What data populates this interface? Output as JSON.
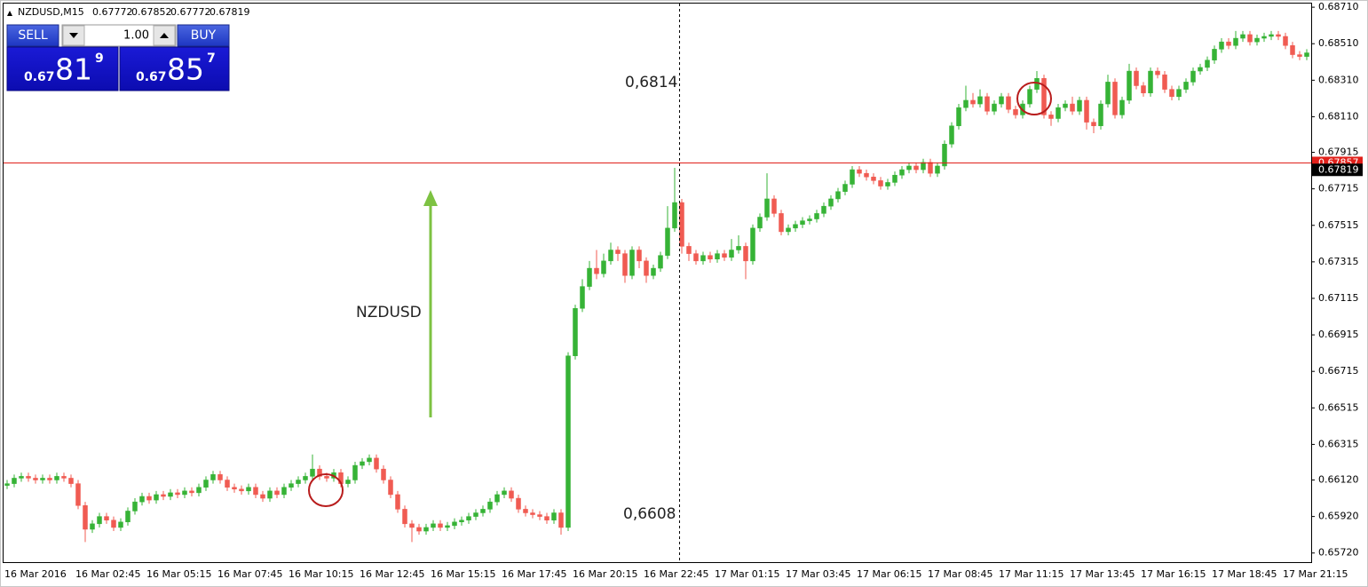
{
  "chart_data": {
    "type": "candlestick",
    "title": "NZDUSD,M15",
    "header_prices": [
      0.67772,
      0.67852,
      0.67772,
      0.67819
    ],
    "bid": 0.67819,
    "ask": 0.67857,
    "up_color": "#36b336",
    "down_color": "#f05b52",
    "ask_color": "#e0201a",
    "annotations": [
      "0,6814",
      "0,6608",
      "NZDUSD"
    ],
    "ylim": [
      0.6567,
      0.6873
    ],
    "yticks": [
      {
        "value": 0.6871,
        "label": "0.68710"
      },
      {
        "value": 0.6851,
        "label": "0.68510"
      },
      {
        "value": 0.6831,
        "label": "0.68310"
      },
      {
        "value": 0.6811,
        "label": "0.68110"
      },
      0.67915,
      0.67715,
      0.67515,
      0.67315,
      0.67115,
      0.66915,
      0.66715,
      0.66515,
      0.66315,
      {
        "value": 0.6612,
        "label": "0.66120"
      },
      {
        "value": 0.6592,
        "label": "0.65920"
      },
      {
        "value": 0.6572,
        "label": "0.65720"
      }
    ],
    "categories": [
      "16 Mar 2016",
      null,
      null,
      null,
      null,
      null,
      null,
      null,
      null,
      null,
      "16 Mar 02:45",
      null,
      null,
      null,
      null,
      null,
      null,
      null,
      null,
      null,
      "16 Mar 05:15",
      null,
      null,
      null,
      null,
      null,
      null,
      null,
      null,
      null,
      "16 Mar 07:45",
      null,
      null,
      null,
      null,
      null,
      null,
      null,
      null,
      null,
      "16 Mar 10:15",
      null,
      null,
      null,
      null,
      null,
      null,
      null,
      null,
      null,
      "16 Mar 12:45",
      null,
      null,
      null,
      null,
      null,
      null,
      null,
      null,
      null,
      "16 Mar 15:15",
      null,
      null,
      null,
      null,
      null,
      null,
      null,
      null,
      null,
      "16 Mar 17:45",
      null,
      null,
      null,
      null,
      null,
      null,
      null,
      null,
      null,
      "16 Mar 20:15",
      null,
      null,
      null,
      null,
      null,
      null,
      null,
      null,
      null,
      "16 Mar 22:45",
      null,
      null,
      null,
      null,
      null,
      null,
      null,
      null,
      null,
      "17 Mar 01:15",
      null,
      null,
      null,
      null,
      null,
      null,
      null,
      null,
      null,
      "17 Mar 03:45",
      null,
      null,
      null,
      null,
      null,
      null,
      null,
      null,
      null,
      "17 Mar 06:15",
      null,
      null,
      null,
      null,
      null,
      null,
      null,
      null,
      null,
      "17 Mar 08:45",
      null,
      null,
      null,
      null,
      null,
      null,
      null,
      null,
      null,
      "17 Mar 11:15",
      null,
      null,
      null,
      null,
      null,
      null,
      null,
      null,
      null,
      "17 Mar 13:45",
      null,
      null,
      null,
      null,
      null,
      null,
      null,
      null,
      null,
      "17 Mar 16:15",
      null,
      null,
      null,
      null,
      null,
      null,
      null,
      null,
      null,
      "17 Mar 18:45",
      null,
      null,
      null,
      null,
      null,
      null,
      null,
      null,
      null,
      "17 Mar 21:15",
      null,
      null,
      null
    ],
    "open": [
      0.6609,
      0.661,
      0.6613,
      0.6614,
      0.6613,
      0.6612,
      0.6613,
      0.6612,
      0.6614,
      0.6613,
      0.661,
      0.6598,
      0.6585,
      0.6588,
      0.6592,
      0.659,
      0.6586,
      0.6589,
      0.6595,
      0.66,
      0.6603,
      0.6601,
      0.6604,
      0.6603,
      0.6605,
      0.6604,
      0.6606,
      0.6605,
      0.6608,
      0.6612,
      0.6615,
      0.6612,
      0.6608,
      0.6607,
      0.6606,
      0.6608,
      0.6604,
      0.6602,
      0.6606,
      0.6604,
      0.6608,
      0.661,
      0.6612,
      0.6614,
      0.6618,
      0.6614,
      0.6613,
      0.6616,
      0.661,
      0.6612,
      0.662,
      0.6622,
      0.6624,
      0.6618,
      0.6612,
      0.6604,
      0.6596,
      0.6588,
      0.6586,
      0.6584,
      0.6586,
      0.6588,
      0.6586,
      0.6587,
      0.6589,
      0.659,
      0.6592,
      0.6594,
      0.6596,
      0.66,
      0.6604,
      0.6606,
      0.6602,
      0.6596,
      0.6594,
      0.6593,
      0.6592,
      0.659,
      0.6594,
      0.6586,
      0.668,
      0.6706,
      0.6718,
      0.6728,
      0.6725,
      0.6732,
      0.6738,
      0.6736,
      0.6724,
      0.6738,
      0.6732,
      0.6724,
      0.6728,
      0.6735,
      0.675,
      0.6764,
      0.674,
      0.6736,
      0.6732,
      0.6735,
      0.6733,
      0.6736,
      0.6734,
      0.6738,
      0.674,
      0.6732,
      0.675,
      0.6756,
      0.6766,
      0.6758,
      0.6748,
      0.675,
      0.6752,
      0.6754,
      0.6755,
      0.6758,
      0.6762,
      0.6766,
      0.677,
      0.6774,
      0.6782,
      0.678,
      0.6778,
      0.6776,
      0.6773,
      0.6775,
      0.6779,
      0.6782,
      0.6784,
      0.6782,
      0.6786,
      0.678,
      0.6784,
      0.6796,
      0.6806,
      0.6816,
      0.682,
      0.6818,
      0.6822,
      0.6814,
      0.6818,
      0.6822,
      0.6815,
      0.6812,
      0.6818,
      0.6826,
      0.6832,
      0.6812,
      0.681,
      0.6816,
      0.6818,
      0.6814,
      0.682,
      0.6808,
      0.6806,
      0.6818,
      0.683,
      0.6812,
      0.682,
      0.6836,
      0.6828,
      0.6824,
      0.6836,
      0.6834,
      0.6826,
      0.6822,
      0.6826,
      0.683,
      0.6836,
      0.6838,
      0.6842,
      0.6848,
      0.6852,
      0.685,
      0.6854,
      0.6856,
      0.6852,
      0.6854,
      0.6855,
      0.6856,
      0.6855,
      0.685,
      0.6845,
      0.6844
    ],
    "high": [
      0.6612,
      0.6615,
      0.6616,
      0.6616,
      0.6615,
      0.6615,
      0.6615,
      0.6616,
      0.6616,
      0.6615,
      0.6612,
      0.66,
      0.659,
      0.6594,
      0.6594,
      0.6592,
      0.6591,
      0.6597,
      0.6602,
      0.6605,
      0.6605,
      0.6606,
      0.6606,
      0.6607,
      0.6607,
      0.6608,
      0.6608,
      0.661,
      0.6614,
      0.6617,
      0.6617,
      0.6614,
      0.661,
      0.6609,
      0.661,
      0.661,
      0.6606,
      0.6608,
      0.6608,
      0.661,
      0.6612,
      0.6614,
      0.6616,
      0.6626,
      0.662,
      0.6616,
      0.6618,
      0.6618,
      0.6614,
      0.6622,
      0.6624,
      0.6626,
      0.6626,
      0.662,
      0.6614,
      0.6606,
      0.6598,
      0.659,
      0.6588,
      0.6588,
      0.659,
      0.659,
      0.6589,
      0.6591,
      0.6592,
      0.6594,
      0.6596,
      0.6598,
      0.6602,
      0.6606,
      0.6608,
      0.6608,
      0.6604,
      0.6598,
      0.6596,
      0.6595,
      0.6594,
      0.6596,
      0.6596,
      0.6682,
      0.6708,
      0.6722,
      0.6732,
      0.6738,
      0.6736,
      0.6742,
      0.674,
      0.6738,
      0.674,
      0.674,
      0.6734,
      0.673,
      0.6737,
      0.6762,
      0.6783,
      0.6766,
      0.6742,
      0.6738,
      0.6737,
      0.6737,
      0.6738,
      0.6738,
      0.6744,
      0.6746,
      0.6742,
      0.6752,
      0.6758,
      0.678,
      0.6768,
      0.676,
      0.6752,
      0.6754,
      0.6756,
      0.6757,
      0.676,
      0.6764,
      0.6768,
      0.6772,
      0.6776,
      0.6784,
      0.6784,
      0.6782,
      0.678,
      0.6778,
      0.6777,
      0.6781,
      0.6784,
      0.6786,
      0.6786,
      0.6788,
      0.6788,
      0.6786,
      0.6798,
      0.6808,
      0.6818,
      0.6828,
      0.6824,
      0.6826,
      0.6824,
      0.682,
      0.6824,
      0.6824,
      0.6817,
      0.682,
      0.6828,
      0.6836,
      0.6834,
      0.6814,
      0.6818,
      0.682,
      0.6822,
      0.6822,
      0.6822,
      0.681,
      0.682,
      0.6834,
      0.6832,
      0.6822,
      0.684,
      0.6838,
      0.683,
      0.6838,
      0.6838,
      0.6836,
      0.6828,
      0.6828,
      0.6832,
      0.6838,
      0.684,
      0.6844,
      0.685,
      0.6854,
      0.6854,
      0.6858,
      0.6858,
      0.6858,
      0.6856,
      0.6857,
      0.6858,
      0.6858,
      0.6857,
      0.6852,
      0.6847,
      0.6848
    ],
    "low": [
      0.6607,
      0.6608,
      0.6611,
      0.6611,
      0.661,
      0.661,
      0.661,
      0.661,
      0.6611,
      0.6608,
      0.6596,
      0.6578,
      0.6583,
      0.6586,
      0.6588,
      0.6584,
      0.6584,
      0.6587,
      0.6593,
      0.6598,
      0.6599,
      0.6599,
      0.6601,
      0.6601,
      0.6602,
      0.6602,
      0.6603,
      0.6603,
      0.6606,
      0.661,
      0.661,
      0.6606,
      0.6605,
      0.6604,
      0.6604,
      0.6602,
      0.66,
      0.66,
      0.6602,
      0.6602,
      0.6606,
      0.6608,
      0.661,
      0.6612,
      0.6612,
      0.6611,
      0.6611,
      0.6608,
      0.6608,
      0.661,
      0.6618,
      0.662,
      0.6616,
      0.661,
      0.6602,
      0.6594,
      0.6586,
      0.6578,
      0.6582,
      0.6582,
      0.6584,
      0.6584,
      0.6584,
      0.6585,
      0.6587,
      0.6588,
      0.659,
      0.6592,
      0.6594,
      0.6598,
      0.6602,
      0.66,
      0.6594,
      0.6592,
      0.6591,
      0.659,
      0.6588,
      0.6588,
      0.6582,
      0.6584,
      0.6678,
      0.6704,
      0.6716,
      0.6722,
      0.6723,
      0.673,
      0.6732,
      0.672,
      0.6722,
      0.6728,
      0.672,
      0.6722,
      0.6726,
      0.6733,
      0.6748,
      0.6736,
      0.6732,
      0.673,
      0.673,
      0.6731,
      0.6731,
      0.6732,
      0.6732,
      0.6736,
      0.6722,
      0.673,
      0.6748,
      0.6754,
      0.6756,
      0.6746,
      0.6746,
      0.6748,
      0.675,
      0.6752,
      0.6753,
      0.6756,
      0.676,
      0.6764,
      0.6768,
      0.6772,
      0.6778,
      0.6776,
      0.6774,
      0.6771,
      0.6771,
      0.6773,
      0.6777,
      0.678,
      0.678,
      0.678,
      0.6778,
      0.6778,
      0.6782,
      0.6794,
      0.6804,
      0.6814,
      0.6816,
      0.6816,
      0.6812,
      0.6812,
      0.6816,
      0.6813,
      0.681,
      0.681,
      0.6816,
      0.6824,
      0.681,
      0.6806,
      0.6808,
      0.6814,
      0.6812,
      0.6812,
      0.6804,
      0.6802,
      0.6804,
      0.6816,
      0.681,
      0.681,
      0.6818,
      0.6826,
      0.6822,
      0.6822,
      0.6832,
      0.6824,
      0.682,
      0.682,
      0.6824,
      0.6828,
      0.6834,
      0.6836,
      0.684,
      0.6846,
      0.6848,
      0.6848,
      0.6852,
      0.685,
      0.685,
      0.6852,
      0.6853,
      0.6853,
      0.6848,
      0.6843,
      0.6842,
      0.6842
    ],
    "close": [
      0.661,
      0.6613,
      0.6614,
      0.6613,
      0.6612,
      0.6613,
      0.6612,
      0.6614,
      0.6613,
      0.661,
      0.6598,
      0.6585,
      0.6588,
      0.6592,
      0.659,
      0.6586,
      0.6589,
      0.6595,
      0.66,
      0.6603,
      0.6601,
      0.6604,
      0.6603,
      0.6605,
      0.6604,
      0.6606,
      0.6605,
      0.6608,
      0.6612,
      0.6615,
      0.6612,
      0.6608,
      0.6607,
      0.6606,
      0.6608,
      0.6604,
      0.6602,
      0.6606,
      0.6604,
      0.6608,
      0.661,
      0.6612,
      0.6614,
      0.6618,
      0.6614,
      0.6613,
      0.6616,
      0.661,
      0.6612,
      0.662,
      0.6622,
      0.6624,
      0.6618,
      0.6612,
      0.6604,
      0.6596,
      0.6588,
      0.6586,
      0.6584,
      0.6586,
      0.6588,
      0.6586,
      0.6587,
      0.6589,
      0.659,
      0.6592,
      0.6594,
      0.6596,
      0.66,
      0.6604,
      0.6606,
      0.6602,
      0.6596,
      0.6594,
      0.6593,
      0.6592,
      0.659,
      0.6594,
      0.6586,
      0.668,
      0.6706,
      0.6718,
      0.6728,
      0.6725,
      0.6732,
      0.6738,
      0.6736,
      0.6724,
      0.6738,
      0.6732,
      0.6724,
      0.6728,
      0.6735,
      0.675,
      0.6764,
      0.674,
      0.6736,
      0.6732,
      0.6735,
      0.6733,
      0.6736,
      0.6734,
      0.6738,
      0.674,
      0.6732,
      0.675,
      0.6756,
      0.6766,
      0.6758,
      0.6748,
      0.675,
      0.6752,
      0.6754,
      0.6755,
      0.6758,
      0.6762,
      0.6766,
      0.677,
      0.6774,
      0.6782,
      0.678,
      0.6778,
      0.6776,
      0.6773,
      0.6775,
      0.6779,
      0.6782,
      0.6784,
      0.6782,
      0.6786,
      0.678,
      0.6784,
      0.6796,
      0.6806,
      0.6816,
      0.682,
      0.6818,
      0.6822,
      0.6814,
      0.6818,
      0.6822,
      0.6815,
      0.6812,
      0.6818,
      0.6826,
      0.6832,
      0.6812,
      0.681,
      0.6816,
      0.6818,
      0.6814,
      0.682,
      0.6808,
      0.6806,
      0.6818,
      0.683,
      0.6812,
      0.682,
      0.6836,
      0.6828,
      0.6824,
      0.6836,
      0.6834,
      0.6826,
      0.6822,
      0.6826,
      0.683,
      0.6836,
      0.6838,
      0.6842,
      0.6848,
      0.6852,
      0.685,
      0.6854,
      0.6856,
      0.6852,
      0.6854,
      0.6855,
      0.6856,
      0.6855,
      0.685,
      0.6845,
      0.6844,
      0.6846
    ]
  },
  "trade_panel": {
    "sell": "SELL",
    "buy": "BUY",
    "lots": "1.00",
    "sell_price": [
      "0.67",
      "81",
      "9"
    ],
    "buy_price": [
      "0.67",
      "85",
      "7"
    ]
  }
}
